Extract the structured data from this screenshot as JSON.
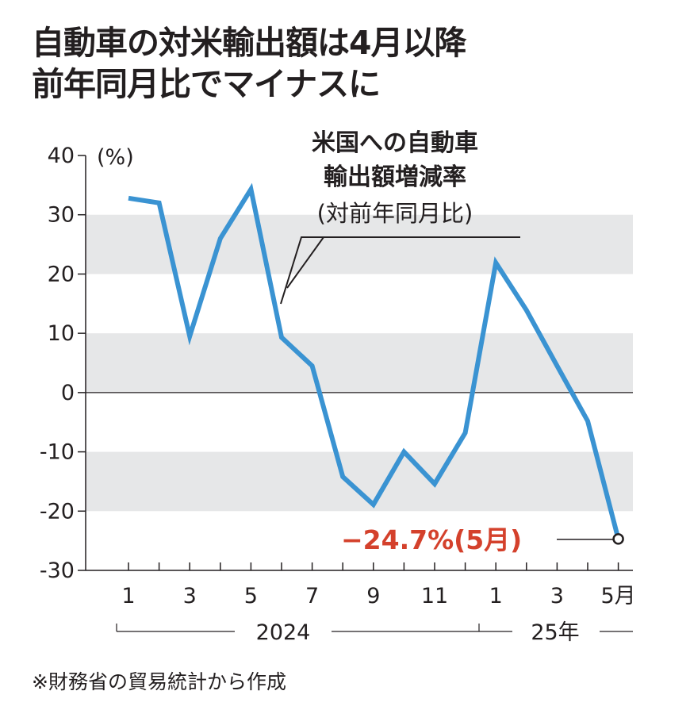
{
  "title": {
    "line1": "自動車の対米輸出額は4月以降",
    "line2": "前年同月比でマイナスに"
  },
  "chart_data": {
    "type": "line",
    "title": "自動車の対米輸出額は4月以降前年同月比でマイナスに",
    "ylabel": "(%)",
    "ylim": [
      -30,
      40
    ],
    "y_ticks": [
      40,
      30,
      20,
      10,
      0,
      -10,
      -20,
      -30
    ],
    "y_tick_labels": [
      "40",
      "30",
      "20",
      "10",
      "0",
      "-10",
      "-20",
      "-30"
    ],
    "x": [
      "2024-01",
      "2024-02",
      "2024-03",
      "2024-04",
      "2024-05",
      "2024-06",
      "2024-07",
      "2024-08",
      "2024-09",
      "2024-10",
      "2024-11",
      "2024-12",
      "2025-01",
      "2025-02",
      "2025-03",
      "2025-04",
      "2025-05"
    ],
    "x_tick_labels": [
      "1",
      "",
      "3",
      "",
      "5",
      "",
      "7",
      "",
      "9",
      "",
      "11",
      "",
      "1",
      "",
      "3",
      "",
      "5月"
    ],
    "year_labels": [
      "2024",
      "25年"
    ],
    "series": [
      {
        "name": "米国への自動車輸出額増減率(対前年同月比)",
        "color": "#3a93d2",
        "values": [
          32.8,
          32.0,
          9.5,
          26.0,
          34.3,
          9.3,
          4.5,
          -14.2,
          -18.9,
          -10.0,
          -15.4,
          -6.8,
          21.9,
          13.9,
          4.5,
          -4.8,
          -24.7
        ]
      }
    ],
    "series_label": {
      "line1": "米国への自動車",
      "line2": "輸出額増減率",
      "line3": "(対前年同月比)"
    },
    "callout": {
      "text": "−24.7%(5月)",
      "color": "#d4412c"
    },
    "grid": "alternating-bands",
    "band_color": "#e6e7e8"
  },
  "source_note": "※財務省の貿易統計から作成"
}
